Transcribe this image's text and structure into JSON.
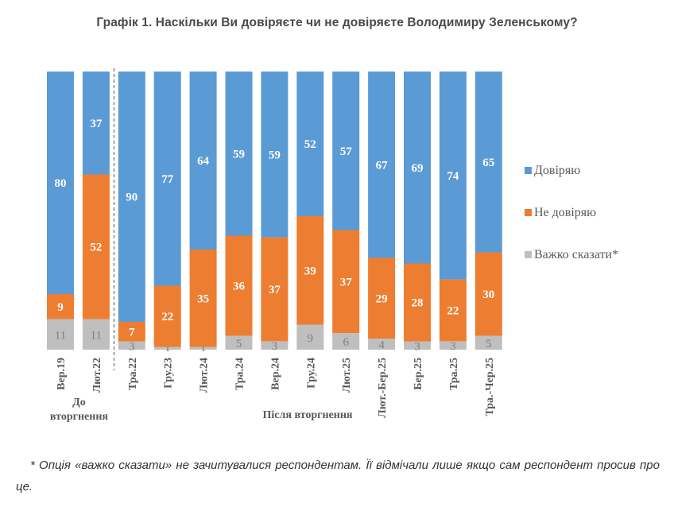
{
  "chart_data": {
    "type": "bar",
    "stacked": true,
    "orientation": "vertical",
    "title": "Графік 1. Наскільки Ви довіряєте чи не довіряєте Володимиру Зеленському?",
    "xlabel": "",
    "ylabel": "",
    "ylim": [
      0,
      100
    ],
    "grid": false,
    "legend_position": "right",
    "categories": [
      "Вер.19",
      "Лют.22",
      "Тра.22",
      "Гру.23",
      "Лют.24",
      "Тра.24",
      "Вер.24",
      "Гру.24",
      "Лют.25",
      "Лют.-Бер.25",
      "Бер.25",
      "Тра.25",
      "Тра.-Чер.25"
    ],
    "series": [
      {
        "name": "Довіряю",
        "color": "#5B9BD5",
        "values": [
          80,
          37,
          90,
          77,
          64,
          59,
          59,
          52,
          57,
          67,
          69,
          74,
          65
        ]
      },
      {
        "name": "Не довіряю",
        "color": "#ED7D31",
        "values": [
          9,
          52,
          7,
          22,
          35,
          36,
          37,
          39,
          37,
          29,
          28,
          22,
          30
        ]
      },
      {
        "name": "Важко сказати*",
        "color": "#BFBFBF",
        "values": [
          11,
          11,
          3,
          1,
          1,
          5,
          3,
          9,
          6,
          4,
          3,
          3,
          5
        ]
      }
    ],
    "stack_order_bottom_to_top": [
      "Важко сказати*",
      "Не довіряю",
      "Довіряю"
    ],
    "groups": [
      {
        "label_lines": [
          "До",
          "вторгнення"
        ],
        "categories": [
          "Вер.19",
          "Лют.22"
        ]
      },
      {
        "label_lines": [
          "Після вторгнення"
        ],
        "categories": [
          "Тра.22",
          "Гру.23",
          "Лют.24",
          "Тра.24",
          "Вер.24",
          "Гру.24",
          "Лют.25",
          "Лют.-Бер.25",
          "Бер.25",
          "Тра.25",
          "Тра.-Чер.25"
        ]
      }
    ],
    "separator_after_category": "Лют.22"
  },
  "footnote": "* Опція «важко сказати» не зачитувалися респондентам. Її відмічали лише якщо сам респондент просив про це."
}
